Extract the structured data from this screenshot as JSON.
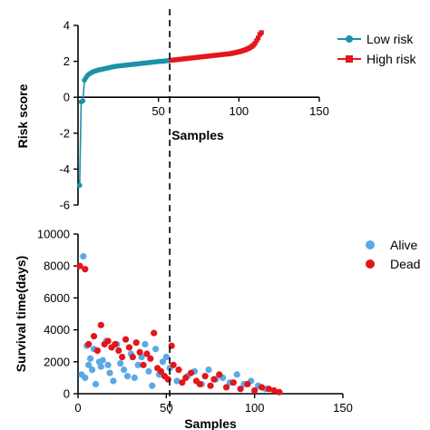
{
  "chart_data": [
    {
      "type": "scatter",
      "xlabel": "Samples",
      "ylabel": "Risk score",
      "xlim": [
        0,
        150
      ],
      "ylim": [
        -6,
        4
      ],
      "xticks": [
        50,
        100,
        150
      ],
      "yticks": [
        -6,
        -4,
        -2,
        0,
        2,
        4
      ],
      "cutoff_x": 57,
      "grid": false,
      "legend_position": "right",
      "series": [
        {
          "name": "Low risk",
          "color": "#1a93a8",
          "marker": "circle",
          "x": [
            1,
            2,
            3,
            4,
            5,
            6,
            7,
            8,
            9,
            10,
            11,
            12,
            13,
            14,
            15,
            16,
            17,
            18,
            19,
            20,
            21,
            22,
            23,
            24,
            25,
            26,
            27,
            28,
            29,
            30,
            31,
            32,
            33,
            34,
            35,
            36,
            37,
            38,
            39,
            40,
            41,
            42,
            43,
            44,
            45,
            46,
            47,
            48,
            49,
            50,
            51,
            52,
            53,
            54,
            55,
            56,
            57
          ],
          "y": [
            -4.9,
            -0.25,
            -0.2,
            0.95,
            1.1,
            1.22,
            1.3,
            1.35,
            1.4,
            1.44,
            1.47,
            1.5,
            1.52,
            1.54,
            1.56,
            1.58,
            1.6,
            1.62,
            1.64,
            1.66,
            1.68,
            1.7,
            1.72,
            1.73,
            1.74,
            1.75,
            1.76,
            1.77,
            1.78,
            1.79,
            1.8,
            1.81,
            1.82,
            1.83,
            1.84,
            1.85,
            1.86,
            1.87,
            1.88,
            1.89,
            1.9,
            1.91,
            1.92,
            1.93,
            1.94,
            1.95,
            1.96,
            1.97,
            1.98,
            1.99,
            2.0,
            2.0,
            2.01,
            2.02,
            2.03,
            2.04,
            2.05
          ]
        },
        {
          "name": "High risk",
          "color": "#e3161b",
          "marker": "square",
          "x": [
            58,
            59,
            60,
            61,
            62,
            63,
            64,
            65,
            66,
            67,
            68,
            69,
            70,
            71,
            72,
            73,
            74,
            75,
            76,
            77,
            78,
            79,
            80,
            81,
            82,
            83,
            84,
            85,
            86,
            87,
            88,
            89,
            90,
            91,
            92,
            93,
            94,
            95,
            96,
            97,
            98,
            99,
            100,
            101,
            102,
            103,
            104,
            105,
            106,
            107,
            108,
            109,
            110,
            111,
            112,
            113,
            114
          ],
          "y": [
            2.06,
            2.07,
            2.08,
            2.09,
            2.1,
            2.11,
            2.12,
            2.13,
            2.14,
            2.15,
            2.16,
            2.17,
            2.18,
            2.19,
            2.2,
            2.21,
            2.22,
            2.23,
            2.24,
            2.25,
            2.26,
            2.27,
            2.28,
            2.29,
            2.3,
            2.31,
            2.32,
            2.33,
            2.34,
            2.35,
            2.36,
            2.37,
            2.38,
            2.39,
            2.4,
            2.41,
            2.42,
            2.43,
            2.45,
            2.47,
            2.49,
            2.51,
            2.53,
            2.55,
            2.58,
            2.61,
            2.64,
            2.68,
            2.72,
            2.77,
            2.83,
            2.9,
            3.0,
            3.15,
            3.3,
            3.5,
            3.6
          ]
        }
      ]
    },
    {
      "type": "scatter",
      "xlabel": "Samples",
      "ylabel": "Survival time(days)",
      "xlim": [
        0,
        150
      ],
      "ylim": [
        0,
        10000
      ],
      "xticks": [
        0,
        50,
        100,
        150
      ],
      "yticks": [
        0,
        2000,
        4000,
        6000,
        8000,
        10000
      ],
      "cutoff_x": 57,
      "grid": false,
      "legend_position": "right",
      "series": [
        {
          "name": "Alive",
          "color": "#5aa9e6",
          "marker": "circle",
          "x": [
            2,
            3,
            4,
            5,
            6,
            7,
            8,
            9,
            10,
            12,
            13,
            14,
            16,
            17,
            18,
            20,
            22,
            24,
            26,
            28,
            30,
            32,
            34,
            36,
            38,
            40,
            42,
            44,
            46,
            48,
            50,
            52,
            56,
            62,
            66,
            70,
            74,
            78,
            82,
            86,
            90,
            94,
            98,
            102,
            106
          ],
          "y": [
            1200,
            8600,
            1000,
            3000,
            1800,
            2200,
            1500,
            2800,
            600,
            2000,
            1700,
            2100,
            3300,
            1800,
            1300,
            800,
            3100,
            1900,
            1500,
            1100,
            2500,
            1000,
            1800,
            2300,
            3100,
            1400,
            500,
            2800,
            1200,
            2000,
            2300,
            1600,
            800,
            1100,
            1400,
            600,
            1500,
            900,
            1000,
            700,
            1200,
            600,
            800,
            500,
            300
          ]
        },
        {
          "name": "Dead",
          "color": "#e3161b",
          "marker": "circle",
          "x": [
            1,
            4,
            6,
            9,
            11,
            13,
            15,
            17,
            19,
            21,
            23,
            25,
            27,
            29,
            31,
            33,
            35,
            37,
            39,
            41,
            43,
            45,
            47,
            49,
            51,
            53,
            54,
            57,
            59,
            61,
            64,
            67,
            69,
            72,
            75,
            77,
            80,
            84,
            88,
            92,
            96,
            100,
            104,
            108,
            111,
            114
          ],
          "y": [
            8000,
            7800,
            3100,
            3600,
            2700,
            4300,
            3100,
            3300,
            2900,
            3100,
            2700,
            2300,
            3400,
            2900,
            2300,
            3200,
            2600,
            1800,
            2500,
            2200,
            3800,
            1600,
            1400,
            1100,
            900,
            3000,
            1800,
            1500,
            700,
            1000,
            1300,
            800,
            600,
            1100,
            500,
            900,
            1200,
            400,
            700,
            300,
            600,
            200,
            400,
            300,
            200,
            100
          ]
        }
      ]
    }
  ],
  "legend_top": [
    {
      "label": "Low risk",
      "color": "#1a93a8"
    },
    {
      "label": "High risk",
      "color": "#e3161b"
    }
  ],
  "legend_bottom": [
    {
      "label": "Alive",
      "color": "#5aa9e6"
    },
    {
      "label": "Dead",
      "color": "#e3161b"
    }
  ]
}
